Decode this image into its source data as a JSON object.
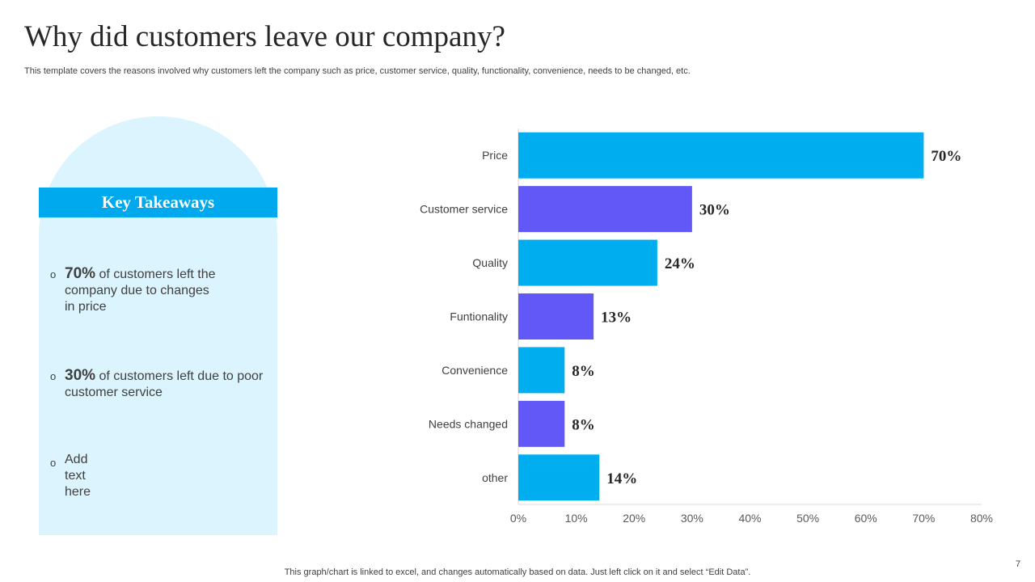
{
  "slide": {
    "title": "Why did customers leave our company?",
    "subtitle": "This template covers the reasons involved why customers left the company such as price, customer service, quality, functionality, convenience, needs to be changed, etc.",
    "footnote": "This graph/chart is linked to excel,  and changes automatically based on data. Just left click on it and select “Edit Data”.",
    "page_number": "7"
  },
  "takeaways": {
    "heading": "Key Takeaways",
    "bullet": "o",
    "items": [
      {
        "value": "70%",
        "text": " of customers left the company due to changes in price"
      },
      {
        "value": "30%",
        "text": " of customers left due to poor customer service"
      },
      {
        "value": "",
        "text": "Add text here"
      }
    ]
  },
  "colors": {
    "accent": "#00aeef",
    "secondary": "#6158f7",
    "panel": "#dbf4fd"
  },
  "chart_data": {
    "type": "bar",
    "orientation": "horizontal",
    "categories": [
      "Price",
      "Customer service",
      "Quality",
      "Funtionality",
      "Convenience",
      "Needs changed",
      "other"
    ],
    "values": [
      70,
      30,
      24,
      13,
      8,
      8,
      14
    ],
    "value_labels": [
      "70%",
      "30%",
      "24%",
      "13%",
      "8%",
      "8%",
      "14%"
    ],
    "bar_colors": [
      "#00aeef",
      "#6158f7",
      "#00aeef",
      "#6158f7",
      "#00aeef",
      "#6158f7",
      "#00aeef"
    ],
    "xlim": [
      0,
      80
    ],
    "xticks": [
      0,
      10,
      20,
      30,
      40,
      50,
      60,
      70,
      80
    ],
    "xtick_labels": [
      "0%",
      "10%",
      "20%",
      "30%",
      "40%",
      "50%",
      "60%",
      "70%",
      "80%"
    ],
    "title": "",
    "xlabel": "",
    "ylabel": "",
    "grid": false,
    "legend": "none"
  }
}
